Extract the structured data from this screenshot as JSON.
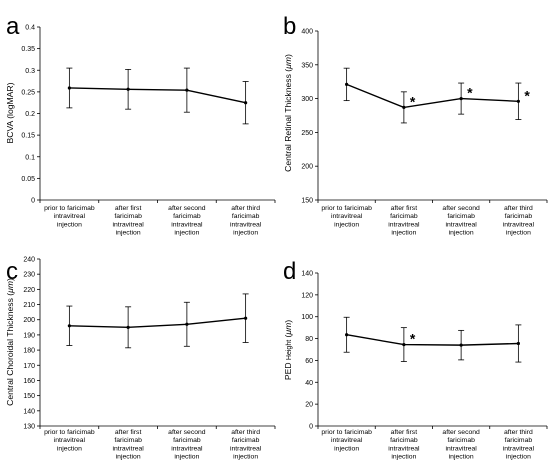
{
  "chart_data": [
    {
      "panel": "a",
      "type": "line",
      "ylabel": "BCVA (logMAR)",
      "ylim": [
        0,
        0.4
      ],
      "yticks": [
        "0",
        "0.05",
        "0.1",
        "0.15",
        "0.2",
        "0.25",
        "0.3",
        "0.35",
        "0.4"
      ],
      "categories": [
        [
          "prior to faricimab",
          "intravitreal",
          "injection"
        ],
        [
          "after first",
          "faricimab",
          "intravitreal",
          "injection"
        ],
        [
          "after second",
          "faricimab",
          "intravitreal",
          "injection"
        ],
        [
          "after third",
          "faricimab",
          "intravitreal",
          "injection"
        ]
      ],
      "values": [
        0.259,
        0.256,
        0.254,
        0.225
      ],
      "error": [
        0.046,
        0.046,
        0.051,
        0.049
      ],
      "significant": [
        false,
        false,
        false,
        false
      ],
      "grid": false
    },
    {
      "panel": "b",
      "type": "line",
      "ylabel_parts": [
        "Central Retinal Thickness (",
        "μm",
        ")"
      ],
      "ylim": [
        150,
        400
      ],
      "yticks": [
        "150",
        "200",
        "250",
        "300",
        "350",
        "400"
      ],
      "categories": [
        [
          "prior to faricimab",
          "intravitreal",
          "injection"
        ],
        [
          "after first",
          "faricimab",
          "intravitreal",
          "injection"
        ],
        [
          "after second",
          "faricimab",
          "intravitreal",
          "injection"
        ],
        [
          "after third",
          "faricimab",
          "intravitreal",
          "injection"
        ]
      ],
      "values": [
        321,
        287,
        300,
        296
      ],
      "error": [
        24,
        23,
        23,
        27
      ],
      "significant": [
        false,
        true,
        true,
        true
      ],
      "significance_marker": "*",
      "grid": false
    },
    {
      "panel": "c",
      "type": "line",
      "ylabel_parts": [
        "Central Choroidal Thickness (",
        "μm",
        ")"
      ],
      "ylim": [
        130,
        240
      ],
      "yticks": [
        "130",
        "140",
        "150",
        "160",
        "170",
        "180",
        "190",
        "200",
        "210",
        "220",
        "230",
        "240"
      ],
      "categories": [
        [
          "prior to faricimab",
          "intravitreal",
          "injection"
        ],
        [
          "after first",
          "faricimab",
          "intravitreal",
          "injection"
        ],
        [
          "after second",
          "faricimab",
          "intravitreal",
          "injection"
        ],
        [
          "after third",
          "faricimab",
          "intravitreal",
          "injection"
        ]
      ],
      "values": [
        196,
        195,
        197,
        201
      ],
      "error": [
        13,
        13.5,
        14.5,
        16
      ],
      "significant": [
        false,
        false,
        false,
        false
      ],
      "grid": false
    },
    {
      "panel": "d",
      "type": "line",
      "ylabel_parts": [
        "PED ",
        "Height",
        " (",
        "μm",
        ")"
      ],
      "ylim": [
        0,
        140
      ],
      "yticks": [
        "0",
        "20",
        "40",
        "60",
        "80",
        "100",
        "120",
        "140"
      ],
      "categories": [
        [
          "prior to faricimab",
          "intravitreal",
          "injection"
        ],
        [
          "after first",
          "faricimab",
          "intravitreal",
          "injection"
        ],
        [
          "after second",
          "faricimab",
          "intravitreal",
          "injection"
        ],
        [
          "after third",
          "faricimab",
          "intravitreal",
          "injection"
        ]
      ],
      "values": [
        83.5,
        74.5,
        74,
        75.5
      ],
      "error": [
        16,
        15.5,
        13.5,
        17
      ],
      "significant": [
        false,
        true,
        false,
        false
      ],
      "significance_marker": "*",
      "grid": false
    }
  ]
}
